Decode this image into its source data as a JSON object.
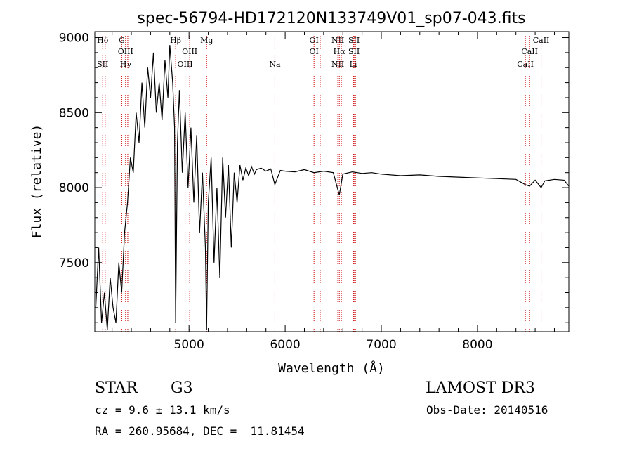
{
  "chart_data": {
    "type": "line",
    "title": "spec-56794-HD172120N133749V01_sp07-043.fits",
    "xlabel": "Wavelength (Å)",
    "ylabel": "Flux (relative)",
    "xlim": [
      4020,
      8950
    ],
    "ylim": [
      7040,
      9040
    ],
    "xticks": [
      "5000",
      "6000",
      "7000",
      "8000"
    ],
    "xtick_values": [
      5000,
      6000,
      7000,
      8000
    ],
    "yticks": [
      "7500",
      "8000",
      "8500",
      "9000"
    ],
    "ytick_values": [
      7500,
      8000,
      8500,
      9000
    ],
    "series": [
      {
        "x": [
          4030,
          4060,
          4090,
          4120,
          4150,
          4180,
          4210,
          4240,
          4270,
          4300,
          4330,
          4360,
          4390,
          4420,
          4450,
          4480,
          4510,
          4540,
          4570,
          4600,
          4630,
          4660,
          4690,
          4720,
          4750,
          4780,
          4800,
          4830,
          4850,
          4861,
          4880,
          4900,
          4930,
          4960,
          4990,
          5020,
          5050,
          5080,
          5110,
          5140,
          5170,
          5183,
          5200,
          5230,
          5260,
          5290,
          5320,
          5350,
          5380,
          5410,
          5440,
          5470,
          5500,
          5530,
          5560,
          5590,
          5620,
          5650,
          5680,
          5700,
          5750,
          5800,
          5850,
          5893,
          5950,
          6000,
          6100,
          6200,
          6300,
          6400,
          6500,
          6563,
          6600,
          6700,
          6800,
          6900,
          7000,
          7200,
          7400,
          7600,
          7800,
          8000,
          8200,
          8400,
          8498,
          8542,
          8600,
          8662,
          8700,
          8800,
          8900,
          8950
        ],
        "y": [
          7200,
          7600,
          7100,
          7300,
          7050,
          7400,
          7200,
          7100,
          7500,
          7300,
          7700,
          7900,
          8200,
          8100,
          8500,
          8300,
          8700,
          8400,
          8800,
          8600,
          8900,
          8500,
          8700,
          8450,
          8850,
          8600,
          8950,
          8700,
          8400,
          7100,
          8300,
          8650,
          8100,
          8500,
          8000,
          8400,
          7900,
          8350,
          7700,
          8100,
          7600,
          7050,
          7900,
          8200,
          7500,
          8000,
          7400,
          8200,
          7800,
          8150,
          7600,
          8100,
          7900,
          8150,
          8050,
          8130,
          8080,
          8140,
          8090,
          8120,
          8130,
          8110,
          8125,
          8020,
          8115,
          8110,
          8105,
          8120,
          8100,
          8110,
          8100,
          7950,
          8090,
          8105,
          8095,
          8100,
          8090,
          8080,
          8085,
          8075,
          8070,
          8065,
          8060,
          8055,
          8020,
          8010,
          8050,
          8000,
          8045,
          8055,
          8050,
          8010
        ]
      }
    ],
    "lines": [
      {
        "x": 4102,
        "top": "Hδ",
        "bot": "SII"
      },
      {
        "x": 4128
      },
      {
        "x": 4300,
        "top": "G"
      },
      {
        "x": 4340,
        "mid": "OIII",
        "bot": "Hγ"
      },
      {
        "x": 4363
      },
      {
        "x": 4861,
        "top": "Hβ"
      },
      {
        "x": 4959,
        "bot": "OIII"
      },
      {
        "x": 5007,
        "mid": "OIII"
      },
      {
        "x": 5183,
        "top": "Mg"
      },
      {
        "x": 5893,
        "bot": "Na"
      },
      {
        "x": 6300,
        "top": "OI",
        "mid": "OI"
      },
      {
        "x": 6364
      },
      {
        "x": 6548,
        "top": "NII",
        "bot": "NII"
      },
      {
        "x": 6563,
        "mid": "Hα"
      },
      {
        "x": 6584
      },
      {
        "x": 6708,
        "bot": "Li"
      },
      {
        "x": 6716,
        "top": "SII",
        "mid": "SII"
      },
      {
        "x": 6731
      },
      {
        "x": 8498,
        "bot": "CaII"
      },
      {
        "x": 8542,
        "mid": "CaII"
      },
      {
        "x": 8662,
        "top": "CaII"
      }
    ],
    "line_color": "#cc0000"
  },
  "info": {
    "class": "STAR",
    "subclass": "G3",
    "survey": "LAMOST DR3",
    "cz": "cz = 9.6 ± 13.1 km/s",
    "obs_date": "Obs-Date: 20140516",
    "coords": "RA = 260.95684, DEC =  11.81454"
  }
}
